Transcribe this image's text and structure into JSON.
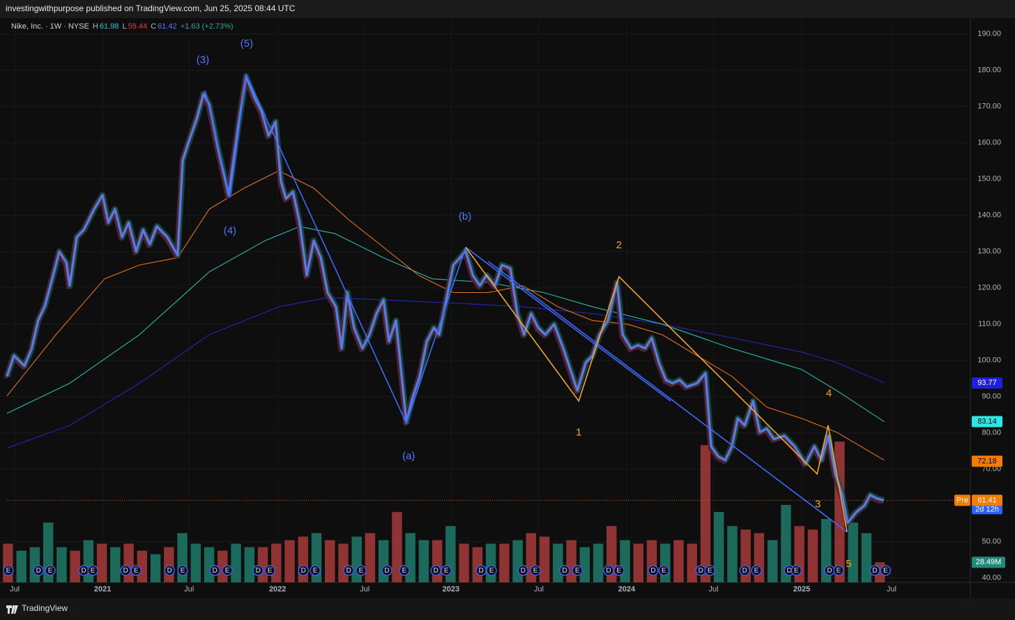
{
  "header": {
    "text": "investingwithpurpose published on TradingView.com, Jun 25, 2025 08:44 UTC"
  },
  "legend": {
    "symbol": "Nike, Inc. · 1W · NYSE",
    "h_label": "H",
    "h": "61.98",
    "l_label": "L",
    "l": "59.44",
    "c_label": "C",
    "c": "61.42",
    "change": "+1.63 (+2.73%)"
  },
  "footer": {
    "brand": "TradingView"
  },
  "chart_data": {
    "type": "line",
    "xlim": [
      -2.3,
      285
    ],
    "ylim": [
      38.8,
      194
    ],
    "grid": true,
    "yticks": [
      {
        "value": 190,
        "label": "190.00"
      },
      {
        "value": 180,
        "label": "180.00"
      },
      {
        "value": 170,
        "label": "170.00"
      },
      {
        "value": 160,
        "label": "160.00"
      },
      {
        "value": 150,
        "label": "150.00"
      },
      {
        "value": 140,
        "label": "140.00"
      },
      {
        "value": 130,
        "label": "130.00"
      },
      {
        "value": 120,
        "label": "120.00"
      },
      {
        "value": 110,
        "label": "110.00"
      },
      {
        "value": 100,
        "label": "100.00"
      },
      {
        "value": 90,
        "label": "90.00"
      },
      {
        "value": 80,
        "label": "80.00"
      },
      {
        "value": 70,
        "label": "70.00"
      },
      {
        "value": 50,
        "label": "50.00"
      },
      {
        "value": 40,
        "label": "40.00"
      }
    ],
    "xticks": [
      {
        "value": 0,
        "label": "Jul"
      },
      {
        "value": 26.2,
        "label": "2021"
      },
      {
        "value": 52,
        "label": "Jul"
      },
      {
        "value": 78.4,
        "label": "2022"
      },
      {
        "value": 104.4,
        "label": "Jul"
      },
      {
        "value": 130.1,
        "label": "2023"
      },
      {
        "value": 156.3,
        "label": "Jul"
      },
      {
        "value": 182.5,
        "label": "2024"
      },
      {
        "value": 208.4,
        "label": "Jul"
      },
      {
        "value": 234.7,
        "label": "2025"
      },
      {
        "value": 261.5,
        "label": "Jul"
      }
    ],
    "series": [
      {
        "color": "#4f7cff",
        "x": [
          -2.3,
          -0.2,
          2.9,
          5,
          7,
          9,
          11.2,
          13.3,
          15.4,
          16.4,
          18.5,
          20.6,
          23.7,
          26.2,
          27.9,
          29.9,
          32,
          34,
          36.2,
          38.3,
          40.3,
          42.4,
          45.5,
          48.6,
          50.1,
          51.8,
          54.3,
          56.3,
          58,
          60.5,
          63.8,
          66.7,
          69,
          71.5,
          73.6,
          75.7,
          77.8,
          79.4,
          80.9,
          83,
          85,
          87.1,
          89.2,
          91.3,
          93.3,
          95.8,
          97.5,
          99.2,
          101.2,
          103.7,
          105.8,
          107.9,
          110,
          111.6,
          113.7,
          115.4,
          116.8,
          118.7,
          120.8,
          122.9,
          125,
          126.6,
          128.7,
          130.8,
          132.8,
          134.5,
          136.6,
          138.7,
          140.7,
          143.2,
          145.3,
          147.8,
          149.9,
          151.9,
          154,
          156.1,
          158.2,
          160.9,
          163.6,
          165.7,
          167.8,
          170.3,
          172.3,
          174.4,
          176.9,
          179.6,
          181.3,
          183.8,
          185.9,
          188,
          190,
          192.1,
          194.2,
          196.2,
          198.3,
          200.4,
          203.5,
          206,
          207.7,
          209.8,
          211.9,
          213.9,
          215.6,
          217.7,
          220.2,
          222.2,
          224.3,
          226.4,
          229.5,
          232.6,
          235.8,
          238.5,
          240.6,
          242.6,
          244.7,
          246.8,
          248.4,
          250.9,
          253.4,
          255.1,
          257.2,
          259.2
        ],
        "values": [
          95.6,
          101.3,
          98.5,
          103,
          111,
          115,
          122.5,
          130,
          127,
          120.6,
          134,
          136,
          141.7,
          145.6,
          138,
          141.7,
          134,
          138,
          130,
          136,
          132,
          137,
          134,
          129,
          155.2,
          160,
          166.7,
          173.5,
          170.6,
          159,
          145.6,
          164.8,
          178.3,
          172.5,
          168.7,
          162,
          165.8,
          149.4,
          144.6,
          146.5,
          137.9,
          123.5,
          133,
          128.3,
          118.7,
          114.8,
          103.3,
          118.7,
          109,
          103.3,
          107.1,
          112.9,
          116.7,
          105.2,
          111,
          95.6,
          83,
          89.8,
          95.6,
          105.2,
          109,
          107.1,
          116.7,
          126.3,
          128.3,
          130.2,
          123.5,
          120.6,
          123.5,
          120.6,
          126.3,
          125.4,
          112.9,
          107.1,
          112.9,
          109,
          107.1,
          110,
          103.3,
          97.5,
          91.7,
          99.4,
          101.3,
          107.1,
          111,
          121.5,
          107.1,
          103.3,
          104.2,
          103.3,
          106.2,
          99.4,
          94.6,
          93.7,
          94.6,
          92.7,
          93.7,
          96.5,
          76.3,
          73.5,
          72.5,
          76.3,
          84,
          82.1,
          88.8,
          80.2,
          81.2,
          78.3,
          79.2,
          76.3,
          71.5,
          76.3,
          72.5,
          79.2,
          68.7,
          62.9,
          55.2,
          58.1,
          60,
          62.9,
          61.9,
          61.42
        ]
      },
      {
        "color": "#e8731c",
        "x": [
          -2.3,
          12.3,
          26.8,
          37.2,
          48.6,
          58,
          68.4,
          78.8,
          89.2,
          99.6,
          110,
          120.4,
          130.8,
          141.2,
          151.6,
          162,
          172.3,
          182.7,
          193.1,
          203.5,
          213.9,
          224.3,
          234.7,
          245.1,
          259.3
        ],
        "values": [
          90.2,
          107.1,
          122.5,
          126.3,
          128.3,
          141.7,
          147.5,
          152.3,
          147.5,
          138.8,
          131.2,
          123.5,
          118.7,
          118.7,
          120.6,
          114.8,
          111,
          110,
          107.1,
          101.3,
          95.6,
          87.1,
          84,
          80.2,
          72.5
        ]
      },
      {
        "color": "#2bbbad",
        "x": [
          -2.3,
          16.4,
          37.2,
          58,
          74.6,
          85,
          95.4,
          110,
          124.5,
          141.2,
          157.8,
          172.3,
          193.1,
          213.9,
          234.7,
          245.1,
          259.3
        ],
        "values": [
          85.4,
          93.7,
          107.1,
          124.4,
          133,
          136.9,
          135,
          128.3,
          122.5,
          121.5,
          118.7,
          114.8,
          110,
          103.3,
          97.5,
          91.7,
          83.1
        ]
      },
      {
        "color": "#2129b8",
        "x": [
          -2.3,
          16.4,
          37.2,
          58,
          78.8,
          93.3,
          110,
          130.8,
          151.6,
          172.3,
          193.1,
          213.9,
          234.7,
          245.1,
          259.3
        ],
        "values": [
          75.8,
          82.1,
          93.7,
          107.1,
          114.8,
          117.3,
          116.7,
          115.8,
          114.8,
          112.9,
          110,
          106.2,
          102.3,
          99.4,
          93.8
        ]
      }
    ],
    "trend_lines": [
      {
        "color": "#3d6bff",
        "x": [
          56.8,
          64.2,
          69,
          116.8,
          134.5
        ],
        "values": [
          174.4,
          145,
          178.8,
          82.7,
          131.2
        ]
      },
      {
        "color": "#3d6bff",
        "x": [
          134.5,
          195.6
        ],
        "values": [
          131.2,
          88.8
        ]
      },
      {
        "color": "#3d6bff",
        "x": [
          141.2,
          248.2
        ],
        "values": [
          127.3,
          52.7
        ]
      },
      {
        "color": "#f5a623",
        "x": [
          134.5,
          168.2,
          180.2,
          239.3,
          242.6,
          248.2
        ],
        "values": [
          131.2,
          88.8,
          123.1,
          68.7,
          82.1,
          52.7
        ]
      }
    ],
    "wave_labels": [
      {
        "text": "(3)",
        "x": 56.1,
        "y": 182.7,
        "color": "#4f7cff"
      },
      {
        "text": "(5)",
        "x": 69.2,
        "y": 187.3,
        "color": "#4f7cff"
      },
      {
        "text": "(4)",
        "x": 64.2,
        "y": 135.6,
        "color": "#4f7cff"
      },
      {
        "text": "(a)",
        "x": 117.5,
        "y": 73.5,
        "color": "#4f7cff"
      },
      {
        "text": "(b)",
        "x": 134.3,
        "y": 139.6,
        "color": "#4f7cff"
      },
      {
        "text": "1",
        "x": 168.2,
        "y": 80,
        "color": "#f5a623"
      },
      {
        "text": "2",
        "x": 180.2,
        "y": 131.7,
        "color": "#f5a623"
      },
      {
        "text": "3",
        "x": 239.5,
        "y": 60.2,
        "color": "#f5a623"
      },
      {
        "text": "4",
        "x": 242.8,
        "y": 90.8,
        "color": "#f5a623"
      },
      {
        "text": "5",
        "x": 248.7,
        "y": 43.8,
        "color": "#f5a623"
      }
    ],
    "last_price": 61.42,
    "price_tags": [
      {
        "value": 93.77,
        "bg": "#1f1fe0",
        "fg": "#ffffff"
      },
      {
        "value": 83.14,
        "bg": "#2ee6e6",
        "fg": "#000000"
      },
      {
        "value": 72.18,
        "bg": "#f57c00",
        "fg": "#000000"
      },
      {
        "value": 61.42,
        "bg": "#2962ff",
        "fg": "#ffffff",
        "countdown": "2d 12h"
      }
    ],
    "pre_tag": {
      "label": "Pre",
      "value": 61.41,
      "bg": "#f57c00"
    },
    "volume": {
      "ylim": [
        0,
        800
      ],
      "up_color": "#1f7a6a",
      "down_color": "#a63a3a",
      "x": [
        -2,
        2,
        6,
        10,
        14,
        18,
        22,
        26,
        30,
        34,
        38,
        42,
        46,
        50,
        54,
        58,
        62,
        66,
        70,
        74,
        78,
        82,
        86,
        90,
        94,
        98,
        102,
        106,
        110,
        114,
        118,
        122,
        126,
        130,
        134,
        138,
        142,
        146,
        150,
        154,
        158,
        162,
        166,
        170,
        174,
        178,
        182,
        186,
        190,
        194,
        198,
        202,
        206,
        210,
        214,
        218,
        222,
        226,
        230,
        234,
        238,
        242,
        246,
        250,
        254,
        258
      ],
      "values": [
        55,
        45,
        50,
        85,
        50,
        45,
        60,
        55,
        50,
        55,
        45,
        40,
        50,
        70,
        55,
        50,
        45,
        55,
        50,
        50,
        55,
        60,
        65,
        70,
        60,
        55,
        65,
        70,
        60,
        100,
        70,
        60,
        60,
        80,
        55,
        50,
        55,
        55,
        60,
        70,
        65,
        55,
        60,
        50,
        55,
        80,
        60,
        55,
        60,
        55,
        60,
        55,
        195,
        100,
        80,
        75,
        70,
        60,
        110,
        80,
        75,
        90,
        200,
        85,
        70,
        28.49
      ],
      "up": [
        0,
        1,
        1,
        1,
        1,
        0,
        1,
        0,
        1,
        0,
        0,
        1,
        0,
        1,
        1,
        1,
        0,
        1,
        1,
        0,
        0,
        0,
        0,
        1,
        0,
        0,
        1,
        0,
        1,
        0,
        1,
        1,
        0,
        1,
        0,
        0,
        1,
        0,
        1,
        0,
        0,
        1,
        0,
        1,
        1,
        0,
        1,
        0,
        0,
        1,
        0,
        0,
        0,
        1,
        1,
        0,
        0,
        1,
        1,
        0,
        0,
        1,
        0,
        1,
        1,
        0
      ],
      "tag": {
        "value": 28.49,
        "label": "28.49M",
        "bg": "#1f8a78"
      }
    },
    "events": {
      "x": [
        -1.9,
        7.1,
        10.6,
        20.6,
        23.3,
        33.1,
        36.2,
        46.2,
        50.1,
        59.7,
        63.4,
        72.6,
        76.1,
        86.1,
        89.6,
        99.6,
        103.3,
        111,
        116.2,
        125.6,
        128.7,
        139.1,
        142.2,
        151.6,
        155.3,
        164,
        167.8,
        177.1,
        180.2,
        190.4,
        193.6,
        204.6,
        207.3,
        217.7,
        221.2,
        231,
        233.1,
        243,
        245.7,
        256.5,
        259.7
      ],
      "labels": [
        "E",
        "D",
        "E",
        "D",
        "E",
        "D",
        "E",
        "D",
        "E",
        "D",
        "E",
        "D",
        "E",
        "D",
        "E",
        "D",
        "E",
        "D",
        "E",
        "D",
        "E",
        "D",
        "E",
        "D",
        "E",
        "D",
        "E",
        "D",
        "E",
        "D",
        "E",
        "D",
        "E",
        "D",
        "E",
        "D",
        "E",
        "D",
        "E",
        "D",
        "E"
      ]
    }
  }
}
